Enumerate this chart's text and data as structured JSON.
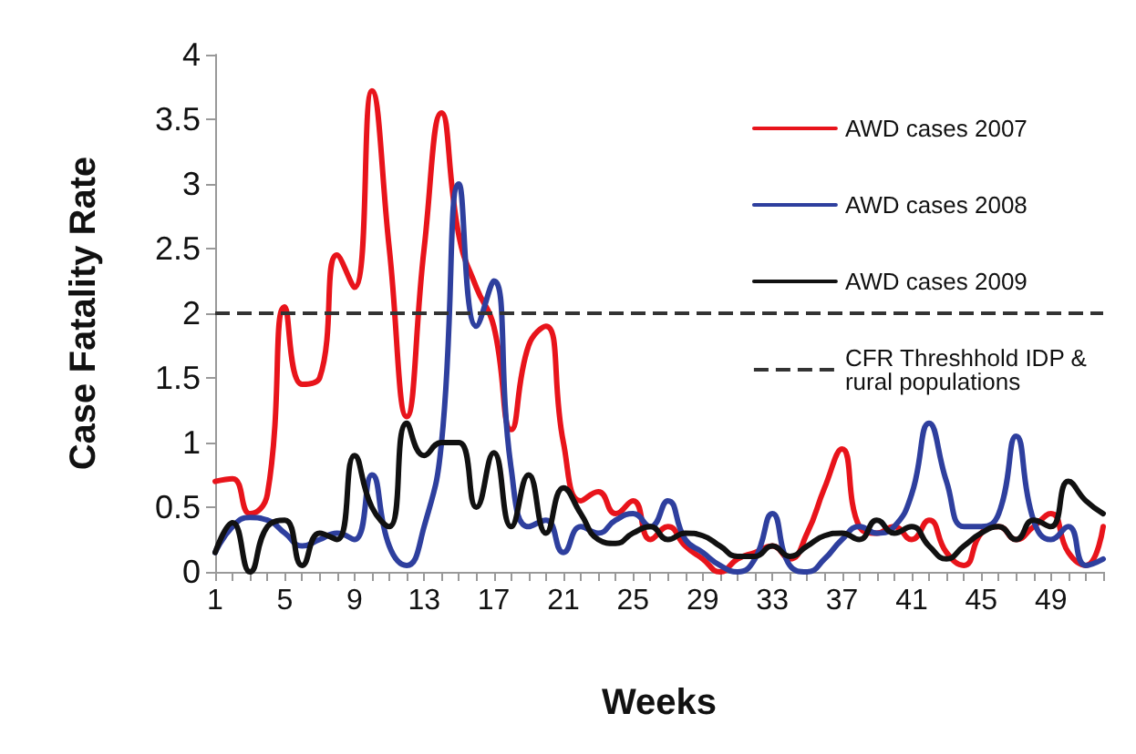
{
  "chart_data": {
    "type": "line",
    "xlabel": "Weeks",
    "ylabel": "Case Fatality Rate",
    "categories": [
      "1",
      null,
      null,
      null,
      "5",
      null,
      null,
      null,
      "9",
      null,
      null,
      null,
      "13",
      null,
      null,
      null,
      "17",
      null,
      null,
      null,
      "21",
      null,
      null,
      null,
      "25",
      null,
      null,
      null,
      "29",
      null,
      null,
      null,
      "33",
      null,
      null,
      null,
      "37",
      null,
      null,
      null,
      "41",
      null,
      null,
      null,
      "45",
      null,
      null,
      null,
      "49",
      null,
      null,
      null
    ],
    "series": [
      {
        "name": "AWD cases 2007",
        "color": "#e8141b",
        "values": [
          0.7,
          0.72,
          0.45,
          0.6,
          2.05,
          1.45,
          1.5,
          2.45,
          2.2,
          3.72,
          2.5,
          1.2,
          2.5,
          3.55,
          2.6,
          2.2,
          1.9,
          1.1,
          1.75,
          1.9,
          1.0,
          0.55,
          0.62,
          0.45,
          0.55,
          0.25,
          0.35,
          0.2,
          0.1,
          0.0,
          0.1,
          0.15,
          0.2,
          0.1,
          0.3,
          0.65,
          0.95,
          0.35,
          0.3,
          0.35,
          0.25,
          0.4,
          0.15,
          0.05,
          0.3,
          0.35,
          0.25,
          0.35,
          0.45,
          0.15,
          0.05,
          0.35
        ]
      },
      {
        "name": "AWD cases 2008",
        "color": "#2e3f9e",
        "values": [
          0.15,
          0.35,
          0.42,
          0.4,
          0.3,
          0.2,
          0.25,
          0.3,
          0.25,
          0.75,
          0.2,
          0.05,
          0.35,
          1.0,
          3.0,
          1.9,
          2.25,
          0.8,
          0.35,
          0.4,
          0.15,
          0.35,
          0.3,
          0.4,
          0.45,
          0.35,
          0.55,
          0.25,
          0.15,
          0.05,
          0.0,
          0.1,
          0.45,
          0.05,
          0.0,
          0.1,
          0.25,
          0.35,
          0.3,
          0.35,
          0.6,
          1.15,
          0.7,
          0.35,
          0.35,
          0.45,
          1.05,
          0.4,
          0.25,
          0.35,
          0.05,
          0.1
        ]
      },
      {
        "name": "AWD cases 2009",
        "color": "#111111",
        "values": [
          0.15,
          0.38,
          0.0,
          0.35,
          0.4,
          0.05,
          0.3,
          0.25,
          0.9,
          0.5,
          0.35,
          1.15,
          0.9,
          1.0,
          1.0,
          0.5,
          0.92,
          0.35,
          0.75,
          0.3,
          0.65,
          0.45,
          0.25,
          0.22,
          0.3,
          0.35,
          0.25,
          0.3,
          0.28,
          0.2,
          0.12,
          0.12,
          0.2,
          0.12,
          0.2,
          0.28,
          0.3,
          0.25,
          0.4,
          0.3,
          0.35,
          0.2,
          0.1,
          0.2,
          0.3,
          0.35,
          0.25,
          0.4,
          0.35,
          0.7,
          0.55,
          0.45
        ]
      }
    ],
    "ylim": [
      0,
      4
    ],
    "yticks": [
      0,
      0.5,
      1,
      1.5,
      2,
      2.5,
      3,
      3.5,
      4
    ],
    "ref_lines": [
      {
        "axis": "y",
        "value": 2,
        "label": "CFR Threshhold IDP & rural populations",
        "color": "#333333",
        "line_style": "dashed"
      }
    ],
    "grid": false,
    "legend": "top right",
    "marker": "none",
    "line_style": "solid"
  }
}
